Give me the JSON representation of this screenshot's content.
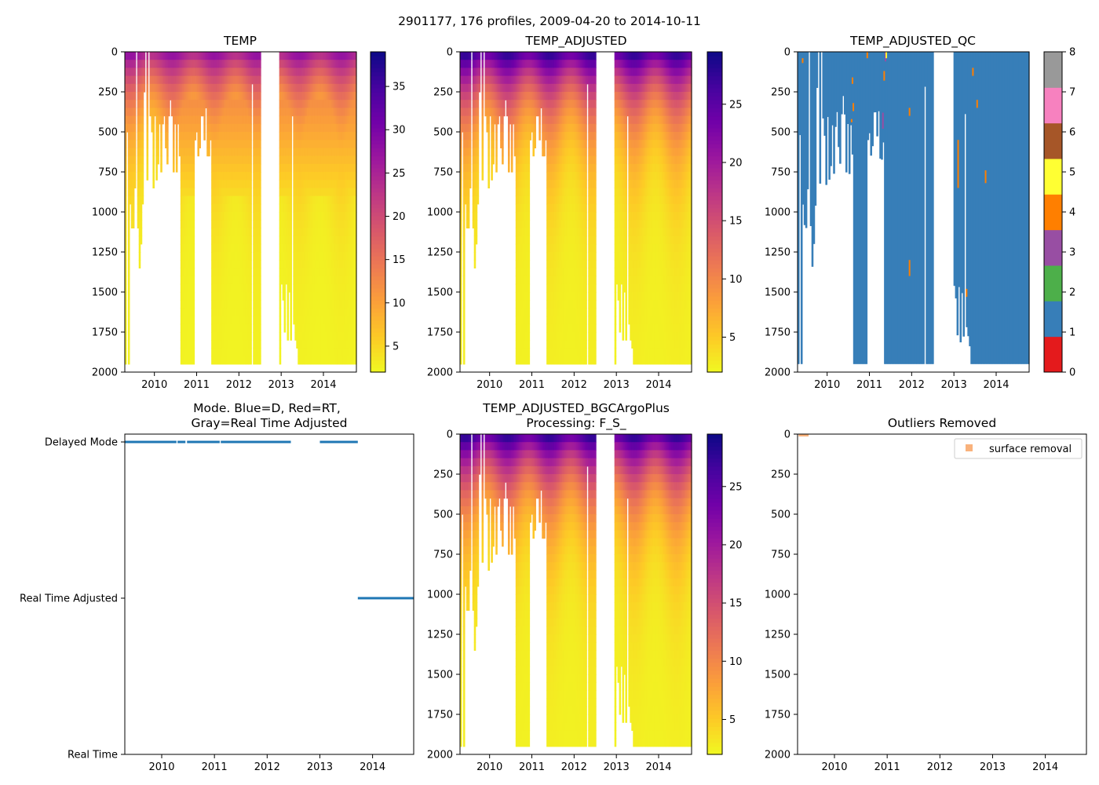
{
  "figure": {
    "suptitle": "2901177, 176 profiles, 2009-04-20 to 2014-10-11"
  },
  "colormaps": {
    "plasma_r": [
      "#f0f921",
      "#fdca26",
      "#fb9f3a",
      "#ed7953",
      "#d8576b",
      "#bd3786",
      "#9c179e",
      "#7201a8",
      "#46039f",
      "#0d0887"
    ],
    "qc_classes": [
      "#e41a1c",
      "#377eb8",
      "#4daf4a",
      "#984ea3",
      "#ff7f00",
      "#ffff33",
      "#a65628",
      "#f781bf",
      "#999999"
    ]
  },
  "chart_data": [
    {
      "id": "temp",
      "type": "heatmap",
      "title": "TEMP",
      "x_ticks": [
        "2010",
        "2011",
        "2012",
        "2013",
        "2014"
      ],
      "xlim": [
        2009.3,
        2014.78
      ],
      "ylim": [
        2000,
        0
      ],
      "y_ticks": [
        "0",
        "250",
        "500",
        "750",
        "1000",
        "1250",
        "1500",
        "1750",
        "2000"
      ],
      "colorbar": {
        "range": [
          2.0,
          39.0
        ],
        "ticks": [
          "5",
          "10",
          "15",
          "20",
          "25",
          "30",
          "35"
        ]
      },
      "data_gap": [
        2012.55,
        2012.95
      ],
      "surface_value": 29,
      "deep_value": 2.5
    },
    {
      "id": "temp_adjusted",
      "type": "heatmap",
      "title": "TEMP_ADJUSTED",
      "x_ticks": [
        "2010",
        "2011",
        "2012",
        "2013",
        "2014"
      ],
      "xlim": [
        2009.3,
        2014.78
      ],
      "ylim": [
        2000,
        0
      ],
      "y_ticks": [
        "0",
        "250",
        "500",
        "750",
        "1000",
        "1250",
        "1500",
        "1750",
        "2000"
      ],
      "colorbar": {
        "range": [
          2.0,
          29.5
        ],
        "ticks": [
          "5",
          "10",
          "15",
          "20",
          "25"
        ]
      },
      "data_gap": [
        2012.55,
        2012.95
      ],
      "surface_value": 29,
      "deep_value": 2.5
    },
    {
      "id": "temp_adjusted_qc",
      "type": "heatmap",
      "title": "TEMP_ADJUSTED_QC",
      "x_ticks": [
        "2010",
        "2011",
        "2012",
        "2013",
        "2014"
      ],
      "xlim": [
        2009.3,
        2014.78
      ],
      "ylim": [
        2000,
        0
      ],
      "y_ticks": [
        "0",
        "250",
        "500",
        "750",
        "1000",
        "1250",
        "1500",
        "1750",
        "2000"
      ],
      "colorbar": {
        "range": [
          0,
          8
        ],
        "ticks": [
          "0",
          "1",
          "2",
          "3",
          "4",
          "5",
          "6",
          "7",
          "8"
        ]
      },
      "data_gap": [
        2012.5,
        2013.0
      ],
      "dominant_flag": 1,
      "flag_marks": [
        {
          "x": 2009.42,
          "y0": 40,
          "y1": 70,
          "flag": 4
        },
        {
          "x": 2010.95,
          "y0": 0,
          "y1": 40,
          "flag": 4
        },
        {
          "x": 2010.6,
          "y0": 160,
          "y1": 200,
          "flag": 4
        },
        {
          "x": 2010.62,
          "y0": 320,
          "y1": 370,
          "flag": 4
        },
        {
          "x": 2010.58,
          "y0": 420,
          "y1": 440,
          "flag": 4
        },
        {
          "x": 2011.35,
          "y0": 120,
          "y1": 180,
          "flag": 4
        },
        {
          "x": 2011.38,
          "y0": 0,
          "y1": 60,
          "flag": 3
        },
        {
          "x": 2011.4,
          "y0": 0,
          "y1": 40,
          "flag": 5
        },
        {
          "x": 2011.32,
          "y0": 380,
          "y1": 480,
          "flag": 3
        },
        {
          "x": 2011.95,
          "y0": 350,
          "y1": 400,
          "flag": 4
        },
        {
          "x": 2011.95,
          "y0": 1300,
          "y1": 1400,
          "flag": 4
        },
        {
          "x": 2013.1,
          "y0": 550,
          "y1": 850,
          "flag": 4
        },
        {
          "x": 2013.45,
          "y0": 100,
          "y1": 150,
          "flag": 4
        },
        {
          "x": 2013.3,
          "y0": 1480,
          "y1": 1530,
          "flag": 4
        },
        {
          "x": 2013.55,
          "y0": 300,
          "y1": 350,
          "flag": 4
        },
        {
          "x": 2013.75,
          "y0": 740,
          "y1": 820,
          "flag": 4
        }
      ]
    },
    {
      "id": "mode",
      "type": "scatter",
      "title": "Mode. Blue=D, Red=RT,",
      "title_line2": "Gray=Real Time Adjusted",
      "x_ticks": [
        "2010",
        "2011",
        "2012",
        "2013",
        "2014"
      ],
      "xlim": [
        2009.3,
        2014.78
      ],
      "y_categories": [
        "Delayed Mode",
        "Real Time Adjusted",
        "Real Time"
      ],
      "ylim": [
        0,
        2
      ],
      "series": [
        {
          "name": "Delayed Mode",
          "y": 0,
          "segments": [
            [
              2009.3,
              2010.28
            ],
            [
              2010.3,
              2010.45
            ],
            [
              2010.48,
              2011.1
            ],
            [
              2011.12,
              2012.45
            ],
            [
              2013.0,
              2013.72
            ]
          ]
        },
        {
          "name": "Real Time Adjusted",
          "y": 1,
          "segments": [
            [
              2013.72,
              2014.78
            ]
          ]
        }
      ]
    },
    {
      "id": "temp_adjusted_bgc",
      "type": "heatmap",
      "title": "TEMP_ADJUSTED_BGCArgoPlus",
      "title_line2": "Processing: F_S_",
      "x_ticks": [
        "2010",
        "2011",
        "2012",
        "2013",
        "2014"
      ],
      "xlim": [
        2009.3,
        2014.78
      ],
      "ylim": [
        2000,
        0
      ],
      "y_ticks": [
        "0",
        "250",
        "500",
        "750",
        "1000",
        "1250",
        "1500",
        "1750",
        "2000"
      ],
      "colorbar": {
        "range": [
          2.0,
          29.5
        ],
        "ticks": [
          "5",
          "10",
          "15",
          "20",
          "25"
        ]
      },
      "data_gap": [
        2012.55,
        2012.95
      ],
      "surface_value": 29,
      "deep_value": 2.5
    },
    {
      "id": "outliers",
      "type": "scatter",
      "title": "Outliers Removed",
      "x_ticks": [
        "2010",
        "2011",
        "2012",
        "2013",
        "2014"
      ],
      "xlim": [
        2009.3,
        2014.78
      ],
      "ylim": [
        2000,
        0
      ],
      "y_ticks": [
        "0",
        "250",
        "500",
        "750",
        "1000",
        "1250",
        "1500",
        "1750",
        "2000"
      ],
      "legend": {
        "label": "surface removal",
        "location": "upper right",
        "color": "#f9b27c"
      },
      "points": [
        {
          "x": 2009.38,
          "y": 0
        },
        {
          "x": 2009.45,
          "y": 0
        }
      ]
    }
  ]
}
